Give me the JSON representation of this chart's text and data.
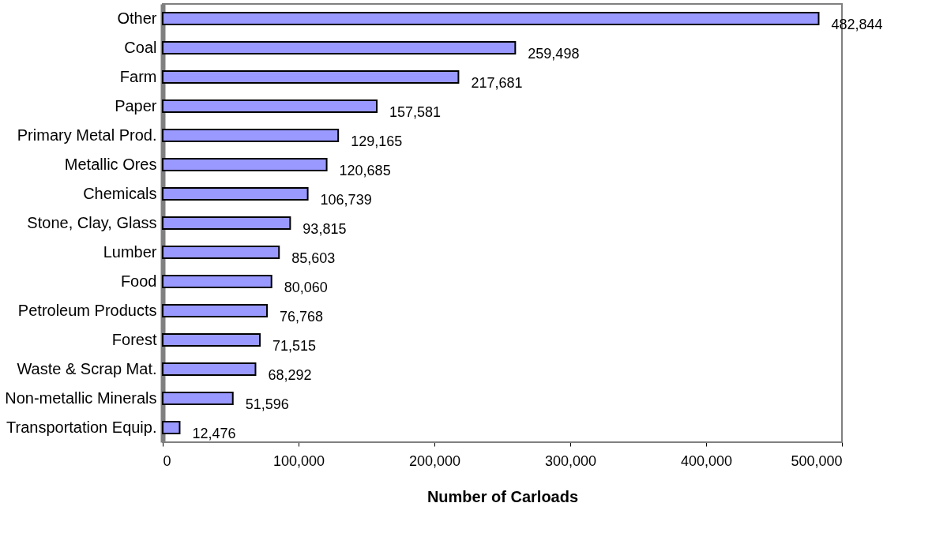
{
  "chart_data": {
    "type": "bar",
    "orientation": "horizontal",
    "xlabel": "Number of Carloads",
    "categories": [
      "Other",
      "Coal",
      "Farm",
      "Paper",
      "Primary Metal Prod.",
      "Metallic Ores",
      "Chemicals",
      "Stone, Clay, Glass",
      "Lumber",
      "Food",
      "Petroleum Products",
      "Forest",
      "Waste & Scrap Mat.",
      "Non-metallic Minerals",
      "Transportation Equip."
    ],
    "values": [
      482844,
      259498,
      217681,
      157581,
      129165,
      120685,
      106739,
      93815,
      85603,
      80060,
      76768,
      71515,
      68292,
      51596,
      12476
    ],
    "value_labels": [
      "482,844",
      "259,498",
      "217,681",
      "157,581",
      "129,165",
      "120,685",
      "106,739",
      "93,815",
      "85,603",
      "80,060",
      "76,768",
      "71,515",
      "68,292",
      "51,596",
      "12,476"
    ],
    "color": "#9999ff",
    "xlim": [
      0,
      500000
    ],
    "xticks": [
      0,
      {
        "value": 100000,
        "label": "100,000"
      },
      {
        "value": 200000,
        "label": "200,000"
      },
      {
        "value": 300000,
        "label": "300,000"
      },
      {
        "value": 400000,
        "label": "400,000"
      },
      {
        "value": 500000,
        "label": "500,000"
      }
    ],
    "grid": false
  }
}
